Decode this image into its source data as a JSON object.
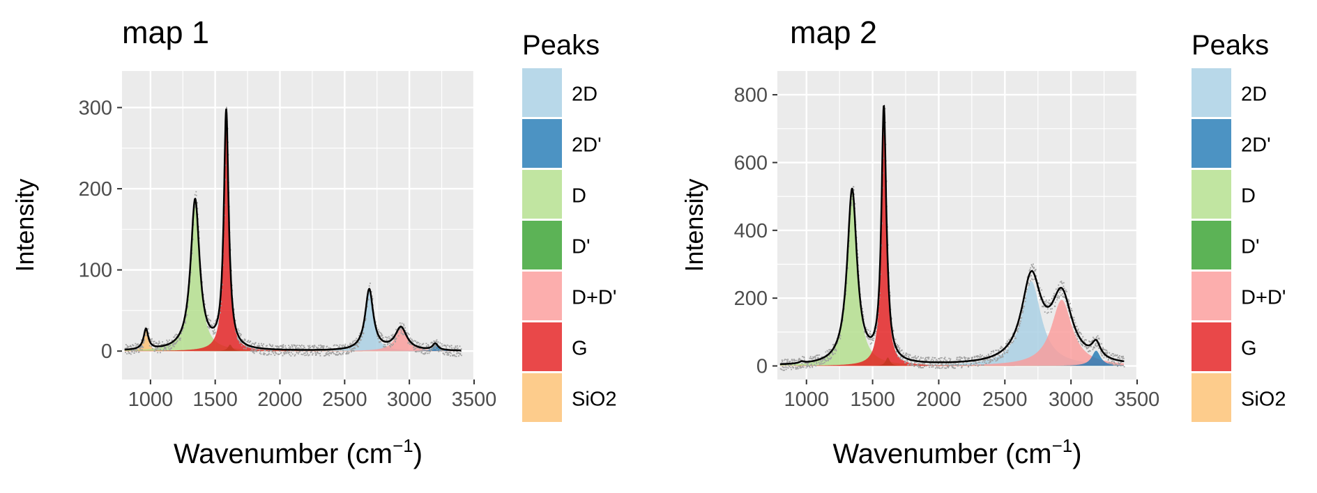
{
  "legend_title": "Peaks",
  "chart_data": [
    {
      "type": "area",
      "title": "map 1",
      "xlabel": "Wavenumber (cm",
      "xlabel_sup": "−1",
      "xlabel_close": ")",
      "ylabel": "Intensity",
      "xlim": [
        780,
        3500
      ],
      "ylim": [
        -35,
        345
      ],
      "xticks": [
        1000,
        1500,
        2000,
        2500,
        3000,
        3500
      ],
      "xtick_labels": [
        "1000",
        "1500",
        "2000",
        "2500",
        "3000",
        "3500"
      ],
      "yticks": [
        0,
        100,
        200,
        300
      ],
      "ytick_labels": [
        "0",
        "100",
        "200",
        "300"
      ],
      "grid": true,
      "legend_position": "right",
      "x_range": [
        800,
        3400
      ],
      "peaks": [
        {
          "name": "SiO2",
          "color": "#FDBF6F",
          "center": 965,
          "height": 25,
          "width": 22
        },
        {
          "name": "D",
          "color": "#B2DF8A",
          "center": 1345,
          "height": 185,
          "width": 42
        },
        {
          "name": "D'",
          "color": "#33A02C",
          "center": 1615,
          "height": 8,
          "width": 20
        },
        {
          "name": "G",
          "color": "#E31A1C",
          "center": 1585,
          "height": 290,
          "width": 22
        },
        {
          "name": "2D",
          "color": "#A6CEE3",
          "center": 2690,
          "height": 75,
          "width": 38
        },
        {
          "name": "D+D'",
          "color": "#FB9A99",
          "center": 2935,
          "height": 28,
          "width": 55
        },
        {
          "name": "2D'",
          "color": "#1F78B4",
          "center": 3200,
          "height": 8,
          "width": 25
        }
      ]
    },
    {
      "type": "area",
      "title": "map 2",
      "xlabel": "Wavenumber (cm",
      "xlabel_sup": "−1",
      "xlabel_close": ")",
      "ylabel": "Intensity",
      "xlim": [
        780,
        3500
      ],
      "ylim": [
        -40,
        870
      ],
      "xticks": [
        1000,
        1500,
        2000,
        2500,
        3000,
        3500
      ],
      "xtick_labels": [
        "1000",
        "1500",
        "2000",
        "2500",
        "3000",
        "3500"
      ],
      "yticks": [
        0,
        200,
        400,
        600,
        800
      ],
      "ytick_labels": [
        "0",
        "200",
        "400",
        "600",
        "800"
      ],
      "grid": true,
      "legend_position": "right",
      "x_range": [
        800,
        3400
      ],
      "peaks": [
        {
          "name": "SiO2",
          "color": "#FDBF6F",
          "center": 965,
          "height": 5,
          "width": 22
        },
        {
          "name": "D",
          "color": "#B2DF8A",
          "center": 1345,
          "height": 515,
          "width": 45
        },
        {
          "name": "D'",
          "color": "#33A02C",
          "center": 1615,
          "height": 25,
          "width": 20
        },
        {
          "name": "G",
          "color": "#E31A1C",
          "center": 1585,
          "height": 740,
          "width": 22
        },
        {
          "name": "2D",
          "color": "#A6CEE3",
          "center": 2700,
          "height": 250,
          "width": 90
        },
        {
          "name": "D+D'",
          "color": "#FB9A99",
          "center": 2930,
          "height": 195,
          "width": 95
        },
        {
          "name": "2D'",
          "color": "#1F78B4",
          "center": 3190,
          "height": 45,
          "width": 40
        }
      ]
    }
  ],
  "legend_items": [
    {
      "name": "2D",
      "color": "#A6CEE3"
    },
    {
      "name": "2D'",
      "color": "#1F78B4"
    },
    {
      "name": "D",
      "color": "#B2DF8A"
    },
    {
      "name": "D'",
      "color": "#33A02C"
    },
    {
      "name": "D+D'",
      "color": "#FB9A99"
    },
    {
      "name": "G",
      "color": "#E31A1C"
    },
    {
      "name": "SiO2",
      "color": "#FDBF6F"
    }
  ]
}
